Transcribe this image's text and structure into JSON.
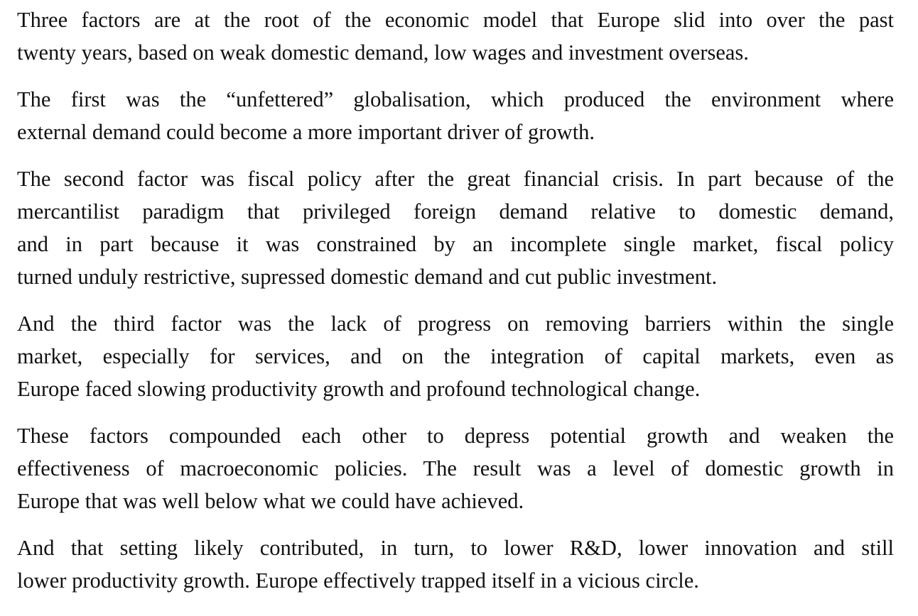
{
  "paragraphs": [
    {
      "lines": [
        "Three factors are at the root of the economic model that Europe slid into over the past",
        "twenty years, based on weak domestic demand, low wages and investment overseas."
      ]
    },
    {
      "lines": [
        "The first was the “unfettered” globalisation, which produced the environment where",
        "external demand could become a more important driver of growth."
      ]
    },
    {
      "lines": [
        "The second factor was fiscal policy after the great financial crisis. In part because of the",
        "mercantilist paradigm that privileged foreign demand relative to domestic demand,",
        "and in part because it was constrained by an incomplete single market, fiscal policy",
        "turned unduly restrictive, supressed domestic demand and cut public investment."
      ]
    },
    {
      "lines": [
        "And the third factor was the lack of progress on removing barriers within the single",
        "market, especially for services, and on the integration of capital markets, even as",
        "Europe faced slowing productivity growth and profound technological change."
      ]
    },
    {
      "lines": [
        "These factors compounded each other to depress potential growth and weaken the",
        "effectiveness of macroeconomic policies. The result was a level of domestic growth in",
        "Europe that was well below what we could have achieved."
      ]
    },
    {
      "lines": [
        "And that setting likely contributed, in turn, to lower R&D, lower innovation and still",
        "lower productivity growth. Europe effectively trapped itself in a vicious circle."
      ]
    }
  ]
}
